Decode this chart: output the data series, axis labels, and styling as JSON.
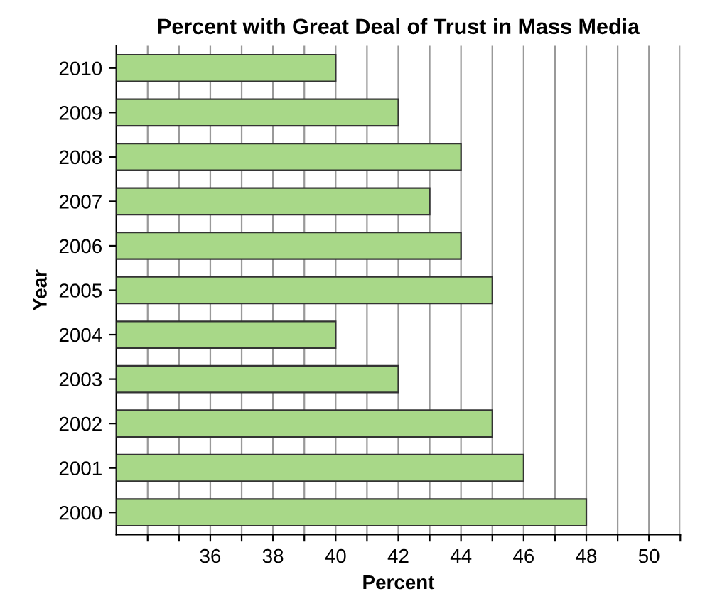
{
  "chart_data": {
    "type": "bar",
    "orientation": "horizontal",
    "title": "Percent with Great Deal of Trust in Mass Media",
    "xlabel": "Percent",
    "ylabel": "Year",
    "categories": [
      "2010",
      "2009",
      "2008",
      "2007",
      "2006",
      "2005",
      "2004",
      "2003",
      "2002",
      "2001",
      "2000"
    ],
    "values": [
      40,
      42,
      44,
      43,
      44,
      45,
      40,
      42,
      45,
      46,
      48
    ],
    "color": "#a8d888",
    "xlim": [
      33,
      51
    ],
    "xticks": [
      {
        "value": 34,
        "label": null
      },
      {
        "value": 35,
        "label": null
      },
      36,
      {
        "value": 37,
        "label": null
      },
      38,
      {
        "value": 39,
        "label": null
      },
      40,
      {
        "value": 41,
        "label": null
      },
      42,
      {
        "value": 43,
        "label": null
      },
      44,
      {
        "value": 45,
        "label": null
      },
      46,
      {
        "value": 47,
        "label": null
      },
      48,
      {
        "value": 49,
        "label": null
      },
      50,
      {
        "value": 51,
        "label": null
      }
    ],
    "grid": "x"
  }
}
